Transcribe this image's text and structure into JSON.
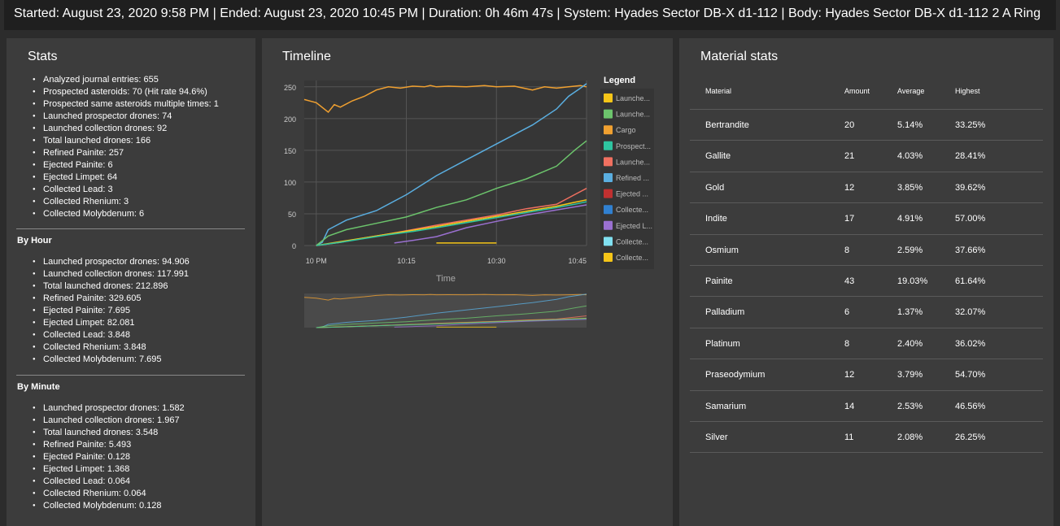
{
  "header": {
    "text": "Started: August 23, 2020 9:58 PM | Ended: August 23, 2020 10:45 PM | Duration: 0h 46m 47s | System: Hyades Sector DB-X d1-112 | Body: Hyades Sector DB-X d1-112 2 A Ring"
  },
  "stats": {
    "title": "Stats",
    "items": [
      "Analyzed journal entries: 655",
      "Prospected asteroids: 70 (Hit rate 94.6%)",
      "Prospected same asteroids multiple times: 1",
      "Launched prospector drones: 74",
      "Launched collection drones: 92",
      "Total launched drones: 166",
      "Refined Painite: 257",
      "Ejected Painite: 6",
      "Ejected Limpet: 64",
      "Collected Lead: 3",
      "Collected Rhenium: 3",
      "Collected Molybdenum: 6"
    ],
    "by_hour_title": "By Hour",
    "by_hour": [
      "Launched prospector drones: 94.906",
      "Launched collection drones: 117.991",
      "Total launched drones: 212.896",
      "Refined Painite: 329.605",
      "Ejected Painite: 7.695",
      "Ejected Limpet: 82.081",
      "Collected Lead: 3.848",
      "Collected Rhenium: 3.848",
      "Collected Molybdenum: 7.695"
    ],
    "by_minute_title": "By Minute",
    "by_minute": [
      "Launched prospector drones: 1.582",
      "Launched collection drones: 1.967",
      "Total launched drones: 3.548",
      "Refined Painite: 5.493",
      "Ejected Painite: 0.128",
      "Ejected Limpet: 1.368",
      "Collected Lead: 0.064",
      "Collected Rhenium: 0.064",
      "Collected Molybdenum: 0.128"
    ]
  },
  "timeline": {
    "title": "Timeline",
    "legend_title": "Legend",
    "x_axis_label": "Time",
    "legend": [
      {
        "label": "Launche...",
        "color": "#f5c518"
      },
      {
        "label": "Launche...",
        "color": "#6cc46c"
      },
      {
        "label": "Cargo",
        "color": "#f0a030"
      },
      {
        "label": "Prospect...",
        "color": "#2ec4a0"
      },
      {
        "label": "Launche...",
        "color": "#f07060"
      },
      {
        "label": "Refined ...",
        "color": "#5aaee0"
      },
      {
        "label": "Ejected ...",
        "color": "#c03030"
      },
      {
        "label": "Collecte...",
        "color": "#3080d0"
      },
      {
        "label": "Ejected L...",
        "color": "#9a70d0"
      },
      {
        "label": "Collecte...",
        "color": "#80e0f0"
      },
      {
        "label": "Collecte...",
        "color": "#f5c518"
      }
    ]
  },
  "chart_data": {
    "type": "line",
    "xlabel": "Time",
    "x_ticks": [
      "10 PM",
      "10:15",
      "10:30",
      "10:45"
    ],
    "y_ticks": [
      "0",
      "50",
      "100",
      "150",
      "200",
      "250"
    ],
    "ylim": [
      0,
      260
    ],
    "x_minutes_range": [
      -2,
      45
    ],
    "series": [
      {
        "color": "#f0a030",
        "x": [
          -2,
          0,
          2,
          3,
          4,
          6,
          8,
          9,
          10,
          12,
          14,
          16,
          18,
          19,
          20,
          22,
          25,
          28,
          30,
          33,
          36,
          38,
          40,
          42,
          44,
          45
        ],
        "y": [
          230,
          225,
          210,
          222,
          218,
          228,
          235,
          240,
          245,
          250,
          248,
          251,
          250,
          252,
          250,
          251,
          250,
          252,
          250,
          251,
          245,
          250,
          248,
          250,
          252,
          250
        ]
      },
      {
        "color": "#5aaee0",
        "x": [
          0,
          1,
          2,
          5,
          10,
          15,
          20,
          25,
          30,
          33,
          36,
          40,
          42,
          44,
          45
        ],
        "y": [
          0,
          5,
          25,
          40,
          55,
          80,
          110,
          135,
          160,
          175,
          190,
          215,
          235,
          248,
          255
        ]
      },
      {
        "color": "#6cc46c",
        "x": [
          0,
          2,
          5,
          10,
          15,
          20,
          25,
          30,
          35,
          40,
          43,
          45
        ],
        "y": [
          0,
          15,
          25,
          35,
          45,
          60,
          72,
          90,
          105,
          125,
          150,
          165
        ]
      },
      {
        "color": "#f07060",
        "x": [
          0,
          4,
          8,
          12,
          16,
          20,
          25,
          30,
          35,
          40,
          43,
          45
        ],
        "y": [
          0,
          5,
          12,
          18,
          25,
          32,
          40,
          48,
          58,
          65,
          80,
          90
        ]
      },
      {
        "color": "#f5c518",
        "x": [
          0,
          4,
          8,
          12,
          16,
          20,
          25,
          30,
          35,
          40,
          43,
          45
        ],
        "y": [
          0,
          6,
          12,
          18,
          24,
          30,
          38,
          46,
          54,
          62,
          68,
          72
        ]
      },
      {
        "color": "#2ec4a0",
        "x": [
          0,
          4,
          8,
          12,
          16,
          20,
          25,
          30,
          35,
          40,
          43,
          45
        ],
        "y": [
          0,
          5,
          11,
          17,
          22,
          28,
          36,
          44,
          52,
          60,
          65,
          69
        ]
      },
      {
        "color": "#9a70d0",
        "x": [
          13,
          16,
          20,
          25,
          30,
          35,
          40,
          45
        ],
        "y": [
          4,
          8,
          14,
          28,
          38,
          48,
          56,
          64
        ]
      },
      {
        "color": "#f5c518",
        "x": [
          20,
          30
        ],
        "y": [
          4,
          4
        ]
      }
    ]
  },
  "materials": {
    "title": "Material stats",
    "columns": [
      "Material",
      "Amount",
      "Average",
      "Highest"
    ],
    "rows": [
      [
        "Bertrandite",
        "20",
        "5.14%",
        "33.25%"
      ],
      [
        "Gallite",
        "21",
        "4.03%",
        "28.41%"
      ],
      [
        "Gold",
        "12",
        "3.85%",
        "39.62%"
      ],
      [
        "Indite",
        "17",
        "4.91%",
        "57.00%"
      ],
      [
        "Osmium",
        "8",
        "2.59%",
        "37.66%"
      ],
      [
        "Painite",
        "43",
        "19.03%",
        "61.64%"
      ],
      [
        "Palladium",
        "6",
        "1.37%",
        "32.07%"
      ],
      [
        "Platinum",
        "8",
        "2.40%",
        "36.02%"
      ],
      [
        "Praseodymium",
        "12",
        "3.79%",
        "54.70%"
      ],
      [
        "Samarium",
        "14",
        "2.53%",
        "46.56%"
      ],
      [
        "Silver",
        "11",
        "2.08%",
        "26.25%"
      ]
    ]
  }
}
